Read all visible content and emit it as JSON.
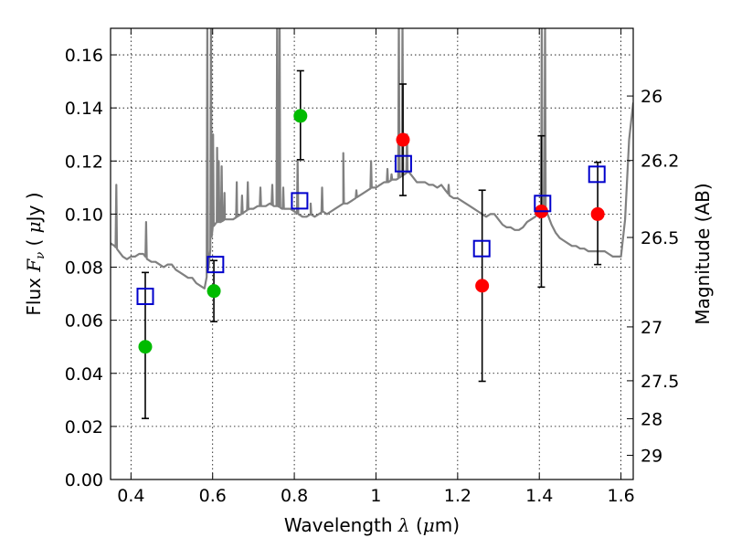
{
  "chart_data": {
    "type": "scatter",
    "title": "",
    "xlabel": "Wavelength  λ (μm)",
    "ylabel": "Flux  Fν  ( μJy )",
    "y2label": "Magnitude (AB)",
    "xlim": [
      0.35,
      1.63
    ],
    "ylim": [
      0.0,
      0.17
    ],
    "grid": true,
    "x_ticks": [
      0.4,
      0.6,
      0.8,
      1.0,
      1.2,
      1.4,
      1.6
    ],
    "x_tick_labels": [
      "0.4",
      "0.6",
      "0.8",
      "1",
      "1.2",
      "1.4",
      "1.6"
    ],
    "y_ticks": [
      0.0,
      0.02,
      0.04,
      0.06,
      0.08,
      0.1,
      0.12,
      0.14,
      0.16
    ],
    "y_tick_labels": [
      "0.00",
      "0.02",
      "0.04",
      "0.06",
      "0.08",
      "0.10",
      "0.12",
      "0.14",
      "0.16"
    ],
    "y2_ticks": [
      {
        "label": "26",
        "flux": 0.1445
      },
      {
        "label": "26.2",
        "flux": 0.1202
      },
      {
        "label": "26.5",
        "flux": 0.0912
      },
      {
        "label": "27",
        "flux": 0.0575
      },
      {
        "label": "27.5",
        "flux": 0.0372
      },
      {
        "label": "28",
        "flux": 0.0229
      },
      {
        "label": "29",
        "flux": 0.0091
      }
    ],
    "colors": {
      "spectrum": "#808080",
      "green": "#00bb00",
      "red": "#ff0000",
      "model": "#0000cc",
      "errorbar": "#000000"
    },
    "spectrum": {
      "name": "model spectrum",
      "continuum": [
        [
          0.35,
          0.089
        ],
        [
          0.36,
          0.088
        ],
        [
          0.37,
          0.086
        ],
        [
          0.38,
          0.084
        ],
        [
          0.39,
          0.083
        ],
        [
          0.4,
          0.084
        ],
        [
          0.41,
          0.084
        ],
        [
          0.42,
          0.085
        ],
        [
          0.43,
          0.085
        ],
        [
          0.44,
          0.083
        ],
        [
          0.45,
          0.082
        ],
        [
          0.46,
          0.082
        ],
        [
          0.47,
          0.081
        ],
        [
          0.48,
          0.08
        ],
        [
          0.49,
          0.081
        ],
        [
          0.5,
          0.081
        ],
        [
          0.51,
          0.079
        ],
        [
          0.52,
          0.078
        ],
        [
          0.53,
          0.077
        ],
        [
          0.54,
          0.076
        ],
        [
          0.55,
          0.076
        ],
        [
          0.56,
          0.074
        ],
        [
          0.57,
          0.073
        ],
        [
          0.58,
          0.072
        ],
        [
          0.59,
          0.08
        ],
        [
          0.6,
          0.095
        ],
        [
          0.61,
          0.097
        ],
        [
          0.62,
          0.097
        ],
        [
          0.63,
          0.098
        ],
        [
          0.64,
          0.098
        ],
        [
          0.65,
          0.098
        ],
        [
          0.66,
          0.099
        ],
        [
          0.67,
          0.1
        ],
        [
          0.68,
          0.101
        ],
        [
          0.69,
          0.102
        ],
        [
          0.7,
          0.102
        ],
        [
          0.71,
          0.103
        ],
        [
          0.72,
          0.103
        ],
        [
          0.73,
          0.103
        ],
        [
          0.74,
          0.104
        ],
        [
          0.75,
          0.103
        ],
        [
          0.76,
          0.103
        ],
        [
          0.77,
          0.102
        ],
        [
          0.78,
          0.102
        ],
        [
          0.79,
          0.102
        ],
        [
          0.8,
          0.101
        ],
        [
          0.81,
          0.1
        ],
        [
          0.82,
          0.099
        ],
        [
          0.83,
          0.099
        ],
        [
          0.84,
          0.1
        ],
        [
          0.85,
          0.099
        ],
        [
          0.86,
          0.1
        ],
        [
          0.87,
          0.101
        ],
        [
          0.88,
          0.1
        ],
        [
          0.89,
          0.101
        ],
        [
          0.9,
          0.102
        ],
        [
          0.91,
          0.103
        ],
        [
          0.92,
          0.104
        ],
        [
          0.93,
          0.104
        ],
        [
          0.94,
          0.105
        ],
        [
          0.95,
          0.106
        ],
        [
          0.96,
          0.107
        ],
        [
          0.97,
          0.108
        ],
        [
          0.98,
          0.109
        ],
        [
          0.99,
          0.11
        ],
        [
          1.0,
          0.11
        ],
        [
          1.01,
          0.111
        ],
        [
          1.02,
          0.112
        ],
        [
          1.03,
          0.112
        ],
        [
          1.04,
          0.113
        ],
        [
          1.05,
          0.113
        ],
        [
          1.06,
          0.114
        ],
        [
          1.07,
          0.115
        ],
        [
          1.08,
          0.116
        ],
        [
          1.09,
          0.114
        ],
        [
          1.1,
          0.112
        ],
        [
          1.11,
          0.112
        ],
        [
          1.12,
          0.112
        ],
        [
          1.13,
          0.111
        ],
        [
          1.14,
          0.111
        ],
        [
          1.15,
          0.11
        ],
        [
          1.16,
          0.111
        ],
        [
          1.17,
          0.109
        ],
        [
          1.18,
          0.107
        ],
        [
          1.19,
          0.106
        ],
        [
          1.2,
          0.106
        ],
        [
          1.21,
          0.105
        ],
        [
          1.22,
          0.104
        ],
        [
          1.23,
          0.103
        ],
        [
          1.24,
          0.102
        ],
        [
          1.25,
          0.101
        ],
        [
          1.26,
          0.1
        ],
        [
          1.27,
          0.099
        ],
        [
          1.28,
          0.1
        ],
        [
          1.29,
          0.1
        ],
        [
          1.3,
          0.098
        ],
        [
          1.31,
          0.096
        ],
        [
          1.32,
          0.095
        ],
        [
          1.33,
          0.095
        ],
        [
          1.34,
          0.094
        ],
        [
          1.35,
          0.094
        ],
        [
          1.36,
          0.095
        ],
        [
          1.37,
          0.097
        ],
        [
          1.38,
          0.098
        ],
        [
          1.39,
          0.099
        ],
        [
          1.4,
          0.101
        ],
        [
          1.41,
          0.103
        ],
        [
          1.42,
          0.1
        ],
        [
          1.43,
          0.096
        ],
        [
          1.44,
          0.093
        ],
        [
          1.45,
          0.091
        ],
        [
          1.46,
          0.09
        ],
        [
          1.47,
          0.089
        ],
        [
          1.48,
          0.088
        ],
        [
          1.49,
          0.088
        ],
        [
          1.5,
          0.087
        ],
        [
          1.51,
          0.087
        ],
        [
          1.52,
          0.086
        ],
        [
          1.53,
          0.086
        ],
        [
          1.54,
          0.086
        ],
        [
          1.55,
          0.086
        ],
        [
          1.56,
          0.086
        ],
        [
          1.57,
          0.085
        ],
        [
          1.58,
          0.084
        ],
        [
          1.59,
          0.084
        ],
        [
          1.6,
          0.084
        ],
        [
          1.61,
          0.098
        ],
        [
          1.62,
          0.128
        ],
        [
          1.63,
          0.142
        ]
      ],
      "lines": [
        [
          0.364,
          0.111
        ],
        [
          0.437,
          0.097
        ],
        [
          0.587,
          0.175
        ],
        [
          0.596,
          0.175
        ],
        [
          0.601,
          0.13
        ],
        [
          0.611,
          0.125
        ],
        [
          0.615,
          0.12
        ],
        [
          0.622,
          0.118
        ],
        [
          0.629,
          0.108
        ],
        [
          0.659,
          0.112
        ],
        [
          0.672,
          0.107
        ],
        [
          0.686,
          0.112
        ],
        [
          0.717,
          0.11
        ],
        [
          0.746,
          0.111
        ],
        [
          0.758,
          0.175
        ],
        [
          0.764,
          0.175
        ],
        [
          0.773,
          0.11
        ],
        [
          0.808,
          0.12
        ],
        [
          0.84,
          0.104
        ],
        [
          0.868,
          0.11
        ],
        [
          0.92,
          0.123
        ],
        [
          0.952,
          0.109
        ],
        [
          0.988,
          0.12
        ],
        [
          1.028,
          0.117
        ],
        [
          1.038,
          0.115
        ],
        [
          1.056,
          0.175
        ],
        [
          1.065,
          0.175
        ],
        [
          1.076,
          0.13
        ],
        [
          1.178,
          0.111
        ],
        [
          1.406,
          0.175
        ],
        [
          1.414,
          0.175
        ]
      ]
    },
    "series": [
      {
        "name": "green points",
        "marker": "circle",
        "color": "#00bb00",
        "x": [
          0.435,
          0.603,
          0.815
        ],
        "y": [
          0.05,
          0.071,
          0.137
        ],
        "yerr_low": [
          0.023,
          0.0595,
          0.1205
        ],
        "yerr_high": [
          0.078,
          0.0825,
          0.154
        ]
      },
      {
        "name": "red points",
        "marker": "circle",
        "color": "#ff0000",
        "x": [
          1.066,
          1.26,
          1.405,
          1.543
        ],
        "y": [
          0.128,
          0.073,
          0.101,
          0.1
        ],
        "yerr_low": [
          0.107,
          0.037,
          0.0725,
          0.081
        ],
        "yerr_high": [
          0.149,
          0.109,
          0.1295,
          0.1195
        ]
      },
      {
        "name": "blue squares",
        "marker": "square-open",
        "color": "#0000cc",
        "x": [
          0.435,
          0.607,
          0.813,
          1.067,
          1.259,
          1.408,
          1.541
        ],
        "y": [
          0.069,
          0.081,
          0.105,
          0.119,
          0.087,
          0.104,
          0.115
        ]
      }
    ]
  }
}
